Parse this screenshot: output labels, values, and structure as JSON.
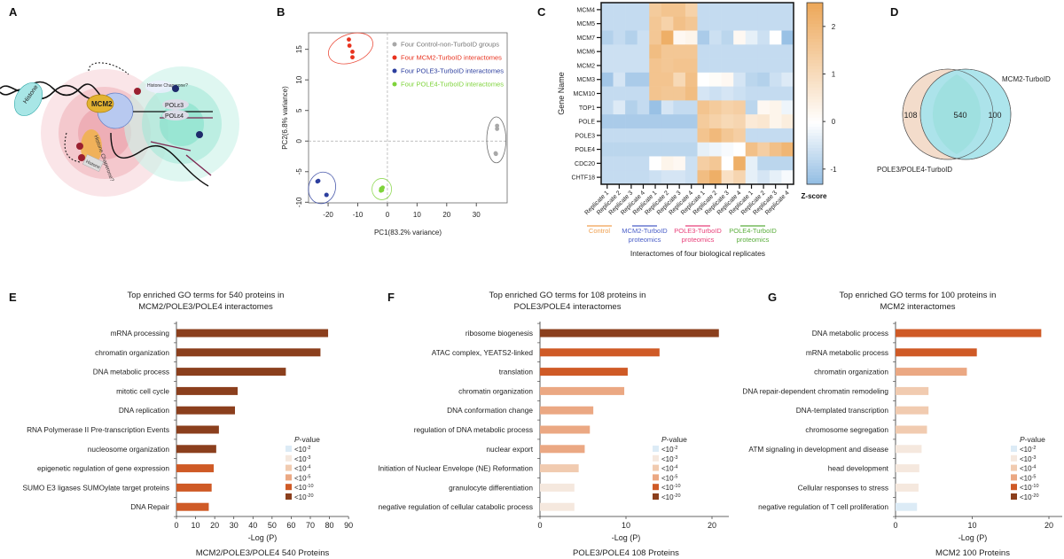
{
  "panel_labels": [
    "A",
    "B",
    "C",
    "D",
    "E",
    "F",
    "G"
  ],
  "illustration": {
    "labels": [
      "Histone",
      "MCM2",
      "Histone Chaperone?",
      "POLε3",
      "POLε4",
      "Histone Chaperone?",
      "Histone"
    ]
  },
  "colors": {
    "control": "#a8a8a8",
    "mcm2": "#e8321e",
    "pole3": "#2c3e9e",
    "pole4": "#7ed33a",
    "heat_low": "#8fbbe2",
    "heat_mid": "#ffffff",
    "heat_high": "#eda85a",
    "venn_left": "#f3dccb",
    "venn_right": "#a9e4ec",
    "venn_overlap": "#9fe0e0"
  },
  "chart_data": [
    {
      "panel": "B",
      "type": "scatter",
      "xlabel": "PC1(83.2% variance)",
      "ylabel": "PC2(6.8% variance)",
      "xlim": [
        -26.6,
        40.4
      ],
      "ylim": [
        -10.1,
        17.7
      ],
      "xticks": [
        -20,
        -10,
        0,
        10,
        20,
        30
      ],
      "yticks": [
        -10,
        -5,
        0,
        5,
        10,
        15
      ],
      "legend_position": "top-right",
      "series": [
        {
          "name": "Four Control-non-TurboID groups",
          "color": "#a8a8a8",
          "points": [
            [
              37,
              2.5
            ],
            [
              37,
              2.0
            ],
            [
              36.5,
              -2.0
            ],
            [
              36.6,
              -2.1
            ]
          ]
        },
        {
          "name": "Four MCM2-TurboID interactomes",
          "color": "#e8321e",
          "points": [
            [
              -13,
              16.6
            ],
            [
              -12.8,
              15.6
            ],
            [
              -11.8,
              14.6
            ],
            [
              -11.8,
              13.7
            ]
          ]
        },
        {
          "name": "Four POLE3-TurboID interactomes",
          "color": "#2c3e9e",
          "points": [
            [
              -23.6,
              -6.6
            ],
            [
              -23.3,
              -6.5
            ],
            [
              -20.6,
              -8.8
            ],
            [
              -20.5,
              -8.8
            ]
          ]
        },
        {
          "name": "Four POLE4-TurboID interactomes",
          "color": "#7ed33a",
          "points": [
            [
              -2.1,
              -7.8
            ],
            [
              -1.8,
              -8.0
            ],
            [
              -2.2,
              -8.1
            ],
            [
              -1.6,
              -7.6
            ]
          ]
        }
      ]
    },
    {
      "panel": "C",
      "type": "heatmap",
      "ylabel": "Gene Name",
      "xlabel": "Interactomes of four biological replicates",
      "rows": [
        "MCM4",
        "MCM5",
        "MCM7",
        "MCM6",
        "MCM2",
        "MCM3",
        "MCM10",
        "TOP1",
        "POLE",
        "POLE3",
        "POLE4",
        "CDC20",
        "CHTF18"
      ],
      "columns": [
        "Replicate 1",
        "Replicate 2",
        "Replicate 3",
        "Replicate 4",
        "Replicate 1",
        "Replicate 2",
        "Replicate 3",
        "Replicate 4",
        "Replicate 1",
        "Replicate 2",
        "Replicate 3",
        "Replicate 4",
        "Replicate 1",
        "Replicate 2",
        "Replicate 3",
        "Replicate 4"
      ],
      "groups": [
        {
          "lines": [
            "Control"
          ],
          "color": "#f0a050"
        },
        {
          "lines": [
            "MCM2-TurboID",
            "proteomics"
          ],
          "color": "#4a5ec8"
        },
        {
          "lines": [
            "POLE3-TurboID",
            "proteomics"
          ],
          "color": "#e8407a"
        },
        {
          "lines": [
            "POLE4-TurboID",
            "proteomics"
          ],
          "color": "#5aae3c"
        }
      ],
      "colorbar": {
        "label": "Z-score",
        "ticks": [
          -1,
          0,
          1,
          2
        ],
        "range": [
          -1.32,
          2.5
        ]
      },
      "values": [
        [
          -0.7,
          -0.7,
          -0.7,
          -0.7,
          1.5,
          1.7,
          1.7,
          1.3,
          -0.7,
          -0.7,
          -0.7,
          -0.7,
          -0.7,
          -0.7,
          -0.7,
          -0.7
        ],
        [
          -0.7,
          -0.7,
          -0.7,
          -0.7,
          1.6,
          1.3,
          1.8,
          1.6,
          -0.7,
          -0.7,
          -0.7,
          -0.7,
          -0.7,
          -0.7,
          -0.7,
          -0.7
        ],
        [
          -0.9,
          -0.7,
          -0.9,
          -0.6,
          1.6,
          2.3,
          0.2,
          0.3,
          -1.0,
          -0.6,
          -0.8,
          0.2,
          -0.3,
          -0.6,
          0.0,
          -1.2
        ],
        [
          -0.6,
          -0.6,
          -0.6,
          -0.6,
          1.9,
          1.6,
          1.6,
          1.6,
          -0.7,
          -0.7,
          -0.7,
          -0.7,
          -0.7,
          -0.7,
          -0.7,
          -0.7
        ],
        [
          -0.6,
          -0.6,
          -0.6,
          -0.6,
          1.7,
          1.6,
          1.7,
          1.7,
          -0.7,
          -0.7,
          -0.7,
          -0.7,
          -0.7,
          -0.7,
          -0.7,
          -0.7
        ],
        [
          -1.1,
          -0.5,
          -1.0,
          -1.0,
          1.7,
          1.7,
          1.1,
          1.8,
          0.0,
          0.1,
          0.2,
          -0.5,
          -0.8,
          -0.9,
          -0.6,
          -0.4
        ],
        [
          -0.7,
          -0.7,
          -0.7,
          -0.7,
          1.7,
          1.6,
          1.6,
          1.9,
          -0.5,
          -0.6,
          -0.5,
          -0.6,
          -0.7,
          -0.7,
          -0.7,
          -0.7
        ],
        [
          -0.7,
          -0.4,
          -0.9,
          -0.7,
          -1.2,
          -0.5,
          -0.7,
          -0.7,
          1.7,
          1.5,
          1.3,
          1.4,
          -0.8,
          0.2,
          0.3,
          -0.2
        ],
        [
          -1.0,
          -1.0,
          -1.0,
          -1.0,
          -1.0,
          -1.0,
          -1.0,
          -1.0,
          1.5,
          1.3,
          1.1,
          1.2,
          0.6,
          0.7,
          0.3,
          0.5
        ],
        [
          -0.7,
          -0.7,
          -0.7,
          -0.7,
          -0.7,
          -0.7,
          -0.7,
          -0.7,
          1.7,
          2.0,
          1.6,
          1.4,
          -0.7,
          -0.7,
          -0.7,
          -0.7
        ],
        [
          -0.8,
          -0.8,
          -0.8,
          -0.8,
          -0.8,
          -0.8,
          -0.8,
          -0.8,
          -0.3,
          -0.2,
          -0.1,
          0.0,
          1.8,
          1.4,
          1.8,
          2.1
        ],
        [
          -0.7,
          -0.7,
          -0.7,
          -0.7,
          0.0,
          0.3,
          0.2,
          -0.6,
          1.4,
          1.6,
          0.0,
          2.3,
          -0.3,
          -0.8,
          -0.8,
          -0.8
        ],
        [
          -0.7,
          -0.7,
          -0.7,
          -0.7,
          -0.6,
          -0.5,
          -0.5,
          -0.6,
          1.9,
          2.3,
          0.9,
          1.2,
          -0.3,
          -0.5,
          -0.3,
          -0.1
        ]
      ]
    },
    {
      "panel": "D",
      "type": "venn",
      "sets": [
        "POLE3/POLE4-TurboID",
        "MCM2-TurboID"
      ],
      "counts": {
        "left_only": "108",
        "overlap": "540",
        "right_only": "100"
      }
    },
    {
      "panel": "E",
      "type": "bar",
      "orientation": "horizontal",
      "title": [
        "Top enriched GO terms for 540 proteins in",
        "MCM2/POLE3/POLE4 interactomes"
      ],
      "xlabel": "-Log (P)",
      "subtitle": "MCM2/POLE3/POLE4 540 Proteins",
      "xlim": [
        0,
        90
      ],
      "xticks": [
        0,
        10,
        20,
        30,
        40,
        50,
        60,
        70,
        80,
        90
      ],
      "categories": [
        "mRNA processing",
        "chromatin organization",
        "DNA metabolic process",
        "mitotic cell cycle",
        "DNA replication",
        "RNA Polymerase II Pre-transcription Events",
        "nucleosome organization",
        "epigenetic regulation of gene expression",
        "SUMO E3 ligases SUMOylate target proteins",
        "DNA Repair"
      ],
      "values": [
        79.3,
        75.3,
        57.2,
        32.0,
        30.6,
        22.2,
        20.8,
        19.5,
        18.4,
        16.9
      ],
      "pvalue_class": [
        "<10^-20",
        "<10^-20",
        "<10^-20",
        "<10^-20",
        "<10^-20",
        "<10^-20",
        "<10^-20",
        "<10^-10",
        "<10^-10",
        "<10^-10"
      ]
    },
    {
      "panel": "F",
      "type": "bar",
      "orientation": "horizontal",
      "title": [
        "Top enriched GO terms for 108 proteins in",
        "POLE3/POLE4  interactomes"
      ],
      "xlabel": "-Log (P)",
      "subtitle": "POLE3/POLE4 108 Proteins",
      "xlim": [
        0,
        21
      ],
      "xticks": [
        0,
        10,
        20
      ],
      "categories": [
        "ribosome biogenesis",
        "ATAC complex, YEATS2-linked",
        "translation",
        "chromatin organization",
        "DNA conformation change",
        "regulation of DNA metabolic process",
        "nuclear export",
        "Initiation of Nuclear Envelope (NE) Reformation",
        "granulocyte differentiation",
        "negative regulation of cellular catabolic process"
      ],
      "values": [
        20.8,
        13.9,
        10.2,
        9.8,
        6.2,
        5.8,
        5.2,
        4.5,
        4.0,
        4.0
      ],
      "pvalue_class": [
        "<10^-20",
        "<10^-10",
        "<10^-10",
        "<10^-5",
        "<10^-5",
        "<10^-5",
        "<10^-5",
        "<10^-4",
        "<10^-3",
        "<10^-3"
      ]
    },
    {
      "panel": "G",
      "type": "bar",
      "orientation": "horizontal",
      "title": [
        "Top enriched GO terms for 100 proteins in",
        "MCM2 interactomes"
      ],
      "xlabel": "-Log (P)",
      "subtitle": "MCM2 100 Proteins",
      "xlim": [
        0,
        21
      ],
      "xticks": [
        0,
        10,
        20
      ],
      "categories": [
        "DNA metabolic process",
        "mRNA metabolic process",
        "chromatin organization",
        "DNA repair-dependent chromatin remodeling",
        "DNA-templated transcription",
        "chromosome segregation",
        "ATM signaling in development and disease",
        "head development",
        "Cellular responses to stress",
        "negative regulation of T cell proliferation"
      ],
      "values": [
        19.0,
        10.6,
        9.3,
        4.3,
        4.3,
        4.1,
        3.4,
        3.1,
        3.0,
        2.8
      ],
      "pvalue_class": [
        "<10^-10",
        "<10^-10",
        "<10^-5",
        "<10^-4",
        "<10^-4",
        "<10^-4",
        "<10^-3",
        "<10^-3",
        "<10^-3",
        "<10^-2"
      ]
    }
  ],
  "pvalue_legend": {
    "title_italic": "P",
    "title_rest": "-value",
    "items": [
      {
        "key": "<10^-2",
        "base": "<10",
        "exp": "-2",
        "color": "#dcebf6"
      },
      {
        "key": "<10^-3",
        "base": "<10",
        "exp": "-3",
        "color": "#f5e8de"
      },
      {
        "key": "<10^-4",
        "base": "<10",
        "exp": "-4",
        "color": "#f1cbb0"
      },
      {
        "key": "<10^-5",
        "base": "<10",
        "exp": "-5",
        "color": "#eba883"
      },
      {
        "key": "<10^-10",
        "base": "<10",
        "exp": "-10",
        "color": "#cf5a26"
      },
      {
        "key": "<10^-20",
        "base": "<10",
        "exp": "-20",
        "color": "#8b3f1d"
      }
    ]
  }
}
